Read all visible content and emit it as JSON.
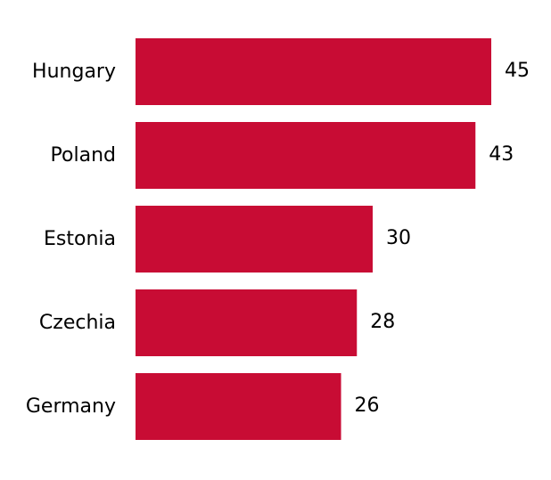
{
  "chart_data": {
    "type": "bar",
    "orientation": "horizontal",
    "categories": [
      "Hungary",
      "Poland",
      "Estonia",
      "Czechia",
      "Germany"
    ],
    "values": [
      45,
      43,
      30,
      28,
      26
    ],
    "title": "",
    "xlabel": "",
    "ylabel": "",
    "xlim": [
      0,
      45
    ],
    "grid": false,
    "legend": "none",
    "bar_color": "#c80c34"
  }
}
